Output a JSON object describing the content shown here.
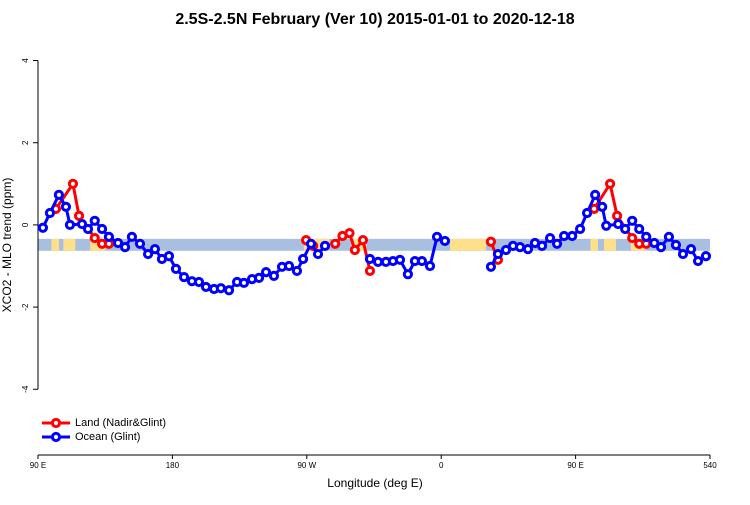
{
  "chart_data": {
    "type": "line",
    "title": "2.5S-2.5N February (Ver 10)   2015-01-01 to 2020-12-18",
    "x_label": "Longitude (deg E)",
    "y_label": "XCO2 - MLO trend (ppm)",
    "xlim": [
      90,
      540
    ],
    "ylim": [
      -5.6,
      4.5
    ],
    "xticks": [
      {
        "value": 90,
        "label": "90 E"
      },
      180,
      {
        "value": 270,
        "label": "90 W"
      },
      {
        "value": 360,
        "label": "0"
      },
      {
        "value": 450,
        "label": "90 E"
      },
      540
    ],
    "yticks": [
      -4,
      -2,
      0,
      2,
      4
    ],
    "band": {
      "ylim": [
        -0.63,
        -0.34
      ],
      "color": "#a9bfe0",
      "land_color": "#ffe08a",
      "land_spans": [
        [
          99,
          104
        ],
        [
          107,
          115
        ],
        [
          125,
          135
        ],
        [
          268,
          285
        ],
        [
          300,
          310
        ],
        [
          366,
          390
        ],
        [
          460,
          465
        ],
        [
          469,
          477
        ],
        [
          487,
          497
        ]
      ]
    },
    "legend": "bottom-left",
    "series": [
      {
        "name": "Land (Nadir&Glint)",
        "color": "#ff0000",
        "x": [
          102,
          113.4,
          117.5,
          128,
          132.9,
          137.5,
          200,
          269.5,
          274.2,
          280,
          289,
          293.9,
          298.6,
          302.2,
          307.6,
          312.3,
          350,
          393.3,
          398,
          430,
          462.4,
          473.1,
          477.8,
          487.9,
          492.6,
          497.3
        ],
        "values": [
          0.39,
          1.0,
          0.22,
          -0.32,
          -0.46,
          -0.46,
          null,
          -0.37,
          -0.51,
          null,
          -0.46,
          -0.27,
          -0.2,
          -0.61,
          -0.37,
          -1.12,
          null,
          -0.41,
          -0.85,
          null,
          0.39,
          1.0,
          0.22,
          -0.32,
          -0.46,
          -0.46
        ]
      },
      {
        "name": "Ocean (Glint)",
        "color": "#0000ff",
        "x": [
          93.3,
          98,
          104,
          108.7,
          111.4,
          119.5,
          123.5,
          128,
          132.9,
          137.5,
          143.6,
          148.3,
          152.9,
          158.3,
          163.7,
          168.3,
          173,
          177.7,
          182.4,
          187.8,
          193.1,
          197.8,
          202.5,
          207.9,
          212.5,
          217.9,
          223.3,
          227.9,
          233.3,
          238,
          242.7,
          248,
          253.4,
          258.1,
          263.4,
          267.5,
          272.8,
          277.5,
          282.2,
          300,
          312.3,
          317.7,
          323,
          327.7,
          332.4,
          337.7,
          342.4,
          347.1,
          352.5,
          357.2,
          362.5,
          380,
          393.3,
          398,
          403.4,
          408.1,
          412.8,
          418.1,
          422.8,
          427.5,
          432.9,
          437.6,
          442.3,
          447.7,
          453,
          457.7,
          463.1,
          467.8,
          470.5,
          478.5,
          483.2,
          487.9,
          492.6,
          497.3,
          502.7,
          507.2,
          512.5,
          517.2,
          521.9,
          527.3,
          532,
          537.3
        ],
        "values": [
          -0.07,
          0.29,
          0.73,
          0.44,
          0,
          0.02,
          -0.1,
          0.1,
          -0.1,
          -0.29,
          -0.44,
          -0.54,
          -0.29,
          -0.46,
          -0.71,
          -0.59,
          -0.83,
          -0.76,
          -1.07,
          -1.27,
          -1.37,
          -1.39,
          -1.51,
          -1.56,
          -1.54,
          -1.59,
          -1.39,
          -1.41,
          -1.32,
          -1.29,
          -1.15,
          -1.24,
          -1.02,
          -1.0,
          -1.12,
          -0.83,
          -0.46,
          -0.71,
          -0.51,
          null,
          -0.83,
          -0.9,
          -0.9,
          -0.88,
          -0.85,
          -1.2,
          -0.88,
          -0.88,
          -1.0,
          -0.29,
          -0.39,
          null,
          -1.02,
          -0.71,
          -0.61,
          -0.51,
          -0.54,
          -0.59,
          -0.44,
          -0.51,
          -0.32,
          -0.46,
          -0.27,
          -0.27,
          -0.1,
          0.29,
          0.73,
          0.44,
          -0.02,
          0.02,
          -0.1,
          0.1,
          -0.1,
          -0.29,
          -0.44,
          -0.54,
          -0.29,
          -0.49,
          -0.71,
          -0.59,
          -0.88,
          -0.76
        ]
      }
    ]
  }
}
